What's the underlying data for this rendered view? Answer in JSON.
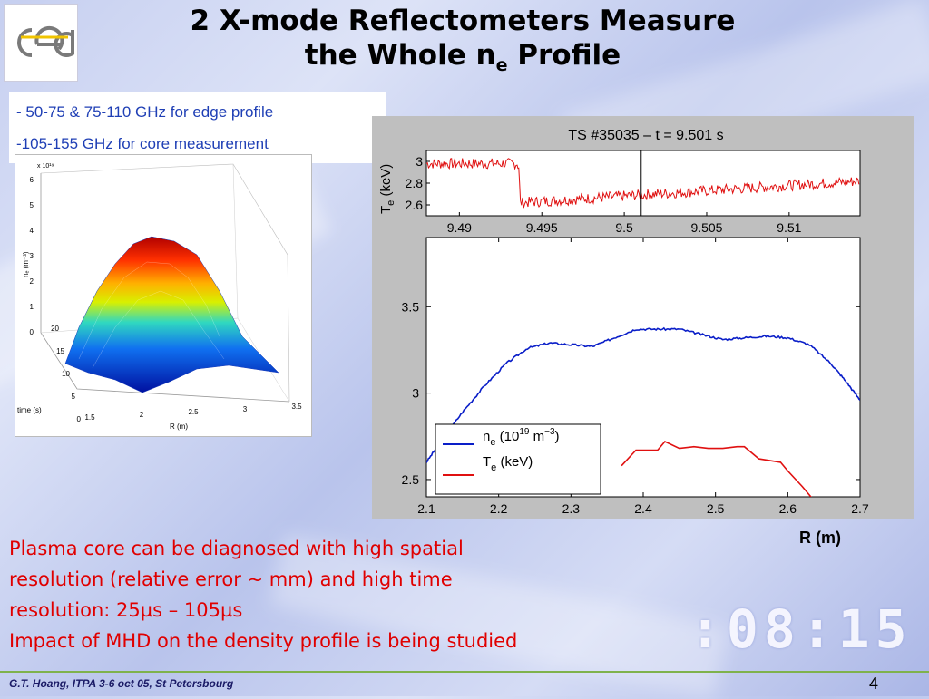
{
  "slide": {
    "title_line1": "2 X-mode Reflectometers Measure",
    "title_line2_main": "the Whole n",
    "title_line2_sub": "e",
    "title_line2_end": " Profile",
    "bullets": [
      "- 50-75 & 75-110 GHz for edge profile",
      "-105-155 GHz for core measurement"
    ],
    "body_lines": [
      "Plasma core can be diagnosed with high spatial",
      "resolution (relative error ~ mm) and high time",
      "resolution: 25µs – 105µs",
      "Impact of MHD on the density profile is being studied"
    ],
    "r_label": "R (m)",
    "footer": "G.T. Hoang, ITPA 3-6 oct 05, St Petersbourg",
    "page_number": "4",
    "clock_text": ":08:15",
    "logo_text": "cea",
    "colors": {
      "title": "#000000",
      "body_text": "#e00000",
      "bullets": "#1f3fb5",
      "footer_line": "#7fb24c",
      "ne_line": "#0a1ec8",
      "te_line": "#e01010"
    }
  },
  "surface_plot": {
    "scale_label": "x 10¹⁹",
    "z_label": "nₑ (m⁻³)",
    "z_ticks": [
      "6",
      "5",
      "4",
      "3",
      "2",
      "1",
      "0"
    ],
    "time_ticks": [
      "20",
      "15",
      "10",
      "5",
      "0"
    ],
    "time_label": "time (s)",
    "r_ticks": [
      "1.5",
      "2",
      "2.5",
      "3",
      "3.5"
    ],
    "r_label": "R (m)"
  },
  "chart_data": [
    {
      "type": "line",
      "title": "TS #35035 – t = 9.501 s",
      "ylabel_main": "T",
      "ylabel_sub": "e",
      "ylabel_unit": " (keV)",
      "xlim": [
        9.488,
        9.5143
      ],
      "ylim": [
        2.5,
        3.1
      ],
      "x_ticks": [
        "9.49",
        "9.495",
        "9.5",
        "9.505",
        "9.51"
      ],
      "y_ticks": [
        "3",
        "2.8",
        "2.6"
      ],
      "vline_x": 9.501,
      "series": [
        {
          "color": "#e01010",
          "x": [
            9.488,
            9.4935,
            9.4936,
            9.4937,
            9.5143
          ],
          "y": [
            2.98,
            2.98,
            2.95,
            2.62,
            2.82
          ]
        }
      ]
    },
    {
      "type": "line",
      "xlim": [
        2.1,
        2.7
      ],
      "ylim": [
        2.4,
        3.9
      ],
      "x_ticks": [
        "2.1",
        "2.2",
        "2.3",
        "2.4",
        "2.5",
        "2.6",
        "2.7"
      ],
      "y_ticks": [
        "3.5",
        "3",
        "2.5"
      ],
      "legend": {
        "ne_main": "n",
        "ne_sub": "e",
        "ne_unit": " (10",
        "ne_exp": "19",
        "ne_unit2": " m",
        "ne_exp2": "−3",
        "ne_close": ")",
        "te_main": "T",
        "te_sub": "e",
        "te_unit": " (keV)"
      },
      "series": [
        {
          "color": "#0a1ec8",
          "x": [
            2.1,
            2.12,
            2.15,
            2.18,
            2.21,
            2.24,
            2.27,
            2.3,
            2.33,
            2.36,
            2.39,
            2.42,
            2.45,
            2.48,
            2.51,
            2.54,
            2.57,
            2.6,
            2.63,
            2.66,
            2.68,
            2.7
          ],
          "y": [
            2.6,
            2.72,
            2.89,
            3.04,
            3.17,
            3.26,
            3.29,
            3.28,
            3.27,
            3.32,
            3.37,
            3.37,
            3.37,
            3.34,
            3.31,
            3.32,
            3.33,
            3.32,
            3.28,
            3.17,
            3.07,
            2.96
          ]
        },
        {
          "color": "#e01010",
          "x": [
            2.37,
            2.39,
            2.42,
            2.43,
            2.45,
            2.47,
            2.49,
            2.51,
            2.53,
            2.54,
            2.56,
            2.59,
            2.6,
            2.62,
            2.64,
            2.68
          ],
          "y": [
            2.58,
            2.67,
            2.67,
            2.72,
            2.68,
            2.69,
            2.68,
            2.68,
            2.69,
            2.69,
            2.62,
            2.6,
            2.55,
            2.46,
            2.36,
            2.2
          ]
        }
      ]
    }
  ]
}
